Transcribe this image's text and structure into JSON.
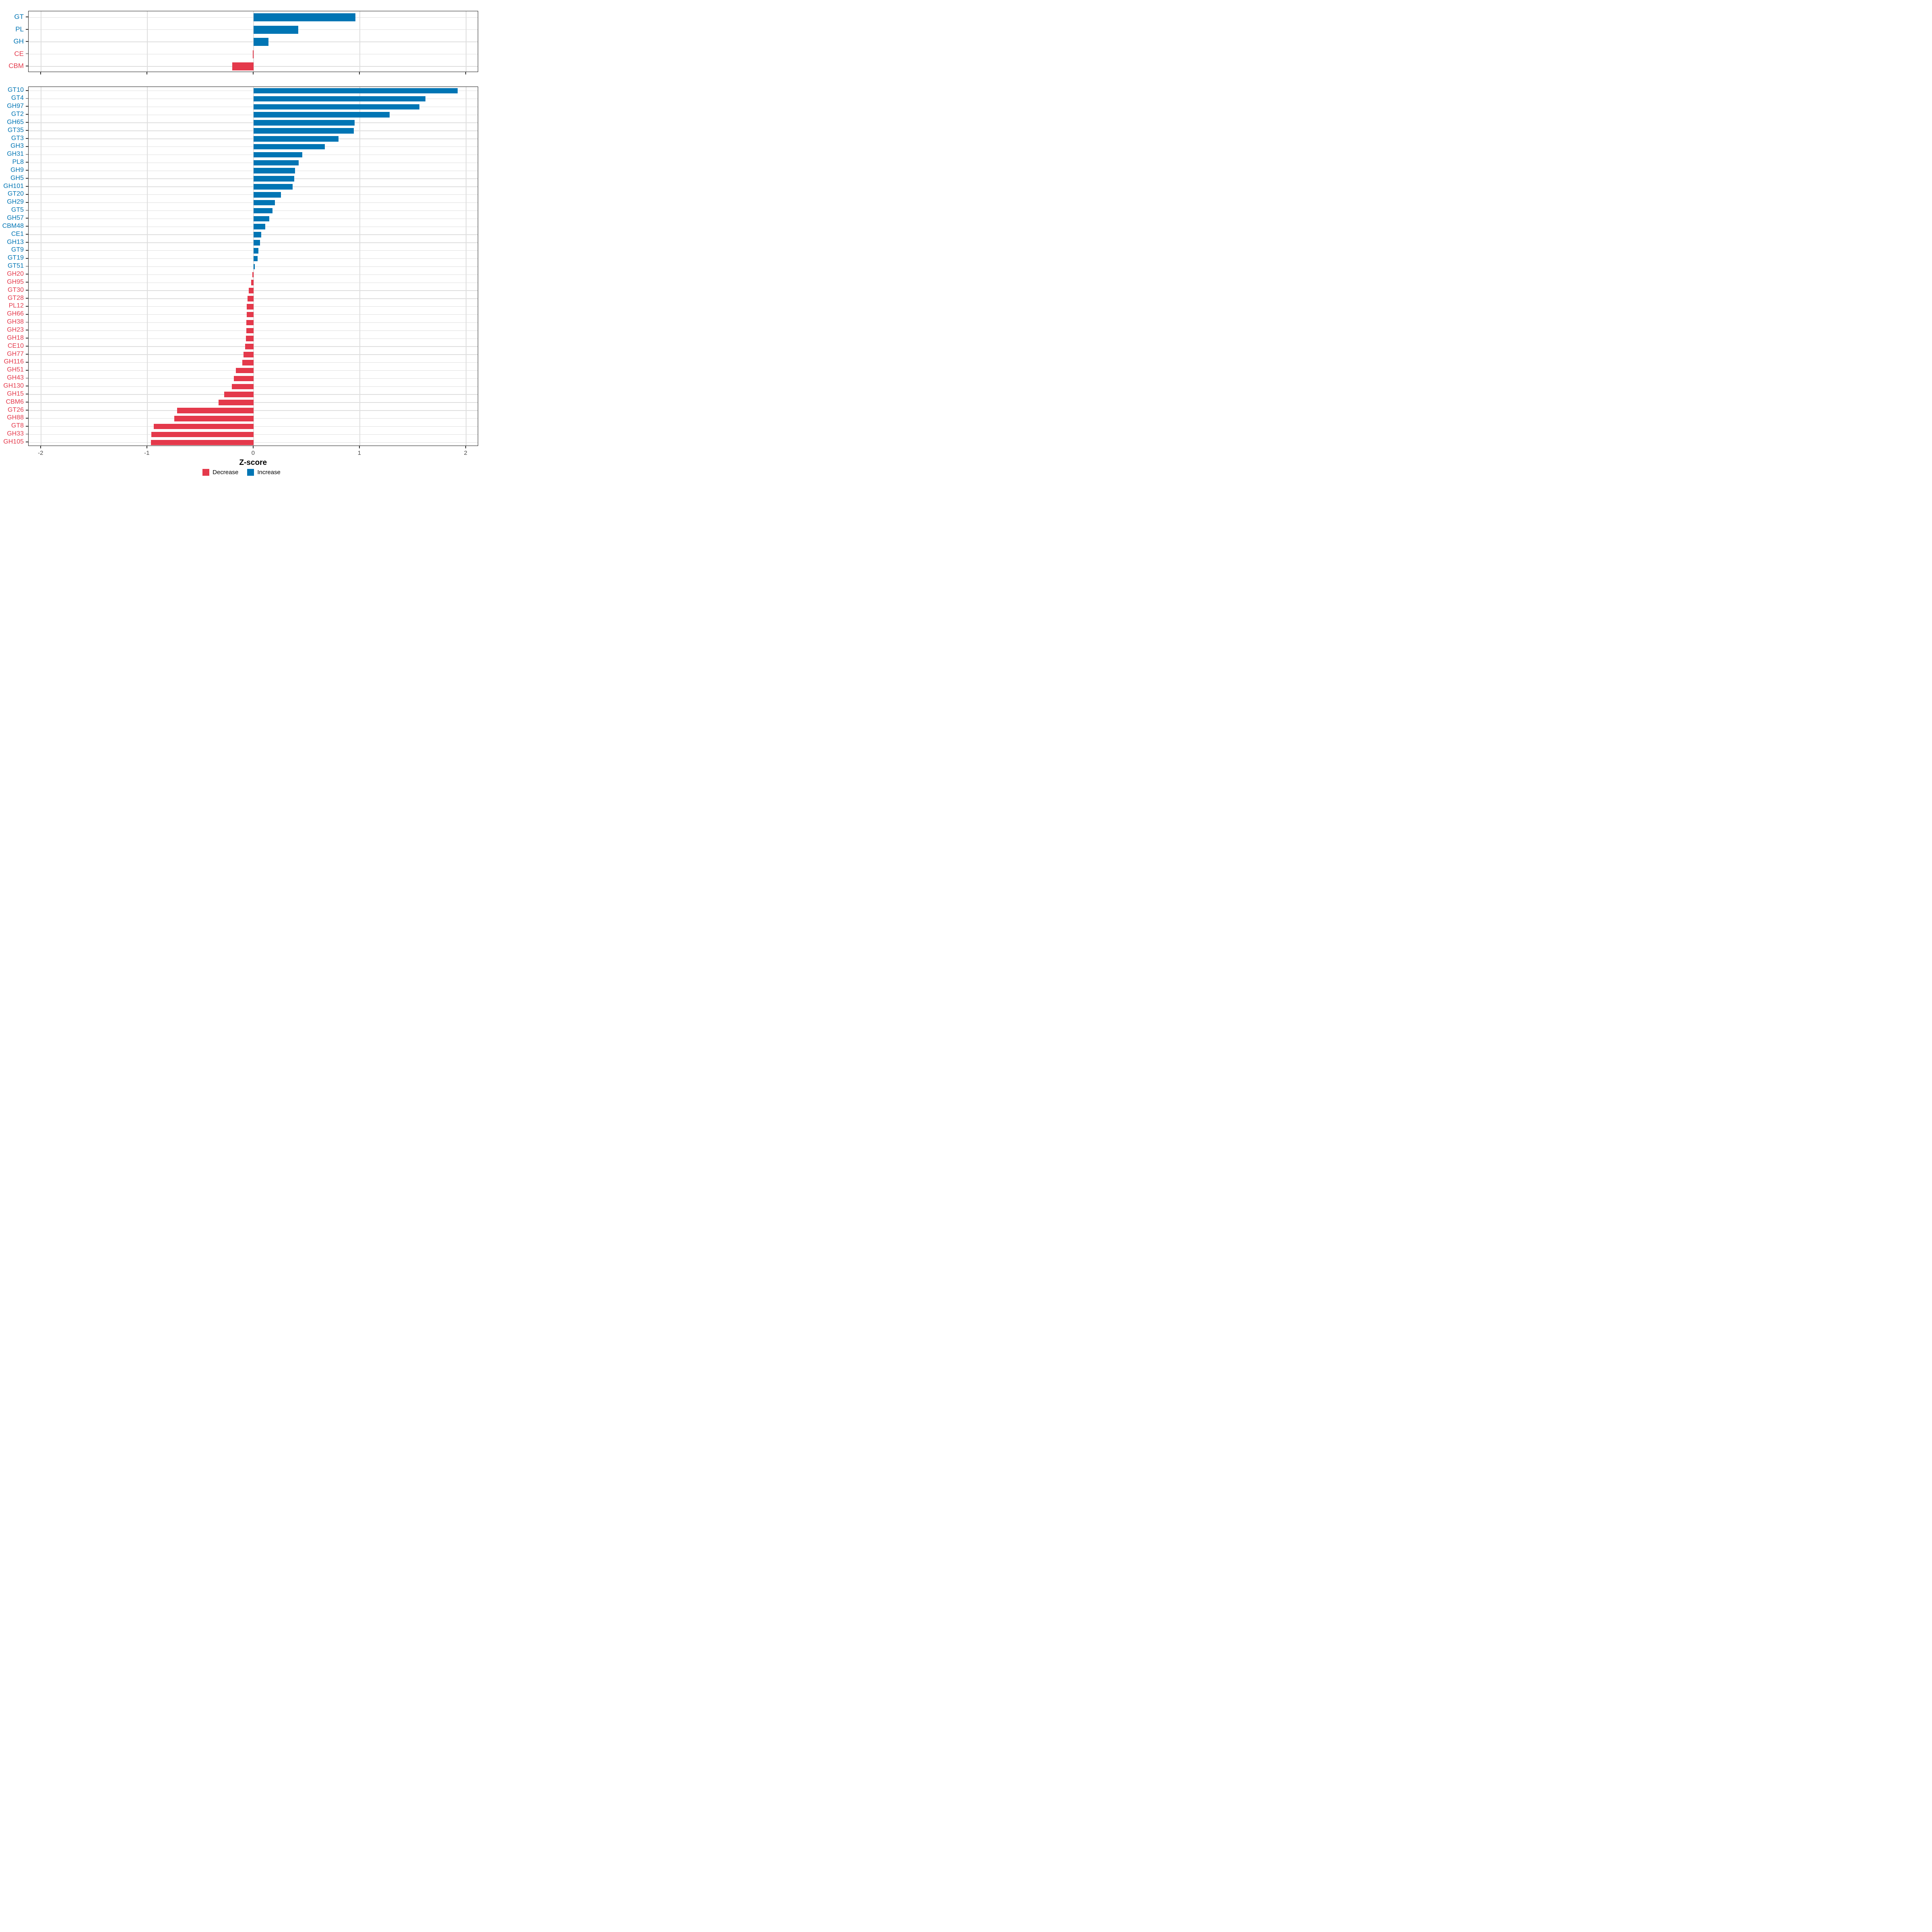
{
  "chart_data": {
    "type": "bar",
    "orientation": "horizontal",
    "xlabel": "Z-score",
    "xlim": [
      -2.12,
      2.12
    ],
    "x_ticks": [
      -2,
      -1,
      0,
      1,
      2
    ],
    "x_tick_labels": [
      "-2",
      "-1",
      "0",
      "1",
      "2"
    ],
    "grid": "major-vertical-and-row-lines",
    "legend_position": "bottom-center",
    "colors": {
      "increase": "#0075B4",
      "decrease": "#E4394B",
      "tick_text": "#4d4d4d",
      "gridline": "#dedede",
      "panel_border": "#1a1a1a"
    },
    "legend": [
      {
        "label": "Decrease",
        "key": "decrease"
      },
      {
        "label": "Increase",
        "key": "increase"
      }
    ],
    "panels": [
      {
        "categories": [
          "GT",
          "PL",
          "GH",
          "CE",
          "CBM"
        ],
        "values": [
          0.96,
          0.42,
          0.14,
          -0.005,
          -0.2
        ]
      },
      {
        "categories": [
          "GT10",
          "GT4",
          "GH97",
          "GT2",
          "GH65",
          "GT35",
          "GT3",
          "GH3",
          "GH31",
          "PL8",
          "GH9",
          "GH5",
          "GH101",
          "GT20",
          "GH29",
          "GT5",
          "GH57",
          "CBM48",
          "CE1",
          "GH13",
          "GT9",
          "GT19",
          "GT51",
          "GH20",
          "GH95",
          "GT30",
          "GT28",
          "PL12",
          "GH66",
          "GH38",
          "GH23",
          "GH18",
          "CE10",
          "GH77",
          "GH116",
          "GH51",
          "GH43",
          "GH130",
          "GH15",
          "CBM6",
          "GT26",
          "GH88",
          "GT8",
          "GH33",
          "GH105"
        ],
        "values": [
          1.92,
          1.62,
          1.56,
          1.28,
          0.95,
          0.945,
          0.8,
          0.67,
          0.46,
          0.425,
          0.39,
          0.385,
          0.37,
          0.26,
          0.2,
          0.18,
          0.15,
          0.11,
          0.072,
          0.06,
          0.047,
          0.04,
          0.013,
          -0.01,
          -0.023,
          -0.045,
          -0.055,
          -0.063,
          -0.065,
          -0.067,
          -0.068,
          -0.07,
          -0.078,
          -0.095,
          -0.105,
          -0.165,
          -0.185,
          -0.205,
          -0.275,
          -0.33,
          -0.72,
          -0.745,
          -0.94,
          -0.96,
          -0.965
        ]
      }
    ]
  }
}
